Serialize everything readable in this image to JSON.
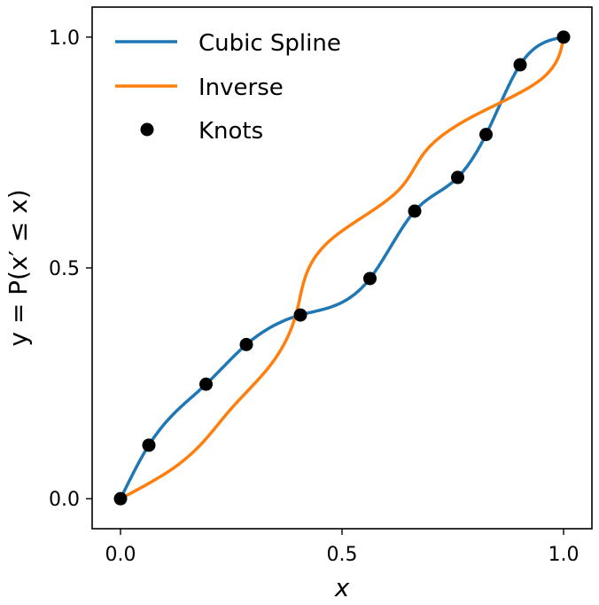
{
  "chart_data": {
    "type": "line",
    "title": "",
    "xlabel": "x",
    "ylabel": "y = P(x′ ≤ x)",
    "xlim": [
      -0.064,
      1.064
    ],
    "ylim": [
      -0.065,
      1.065
    ],
    "xticks": [
      "0.0",
      "0.5",
      "1.0"
    ],
    "yticks": [
      "0.0",
      "0.5",
      "1.0"
    ],
    "grid": false,
    "legend_placement": "top-left",
    "knots": {
      "x": [
        0.0,
        0.064,
        0.193,
        0.284,
        0.406,
        0.563,
        0.664,
        0.761,
        0.825,
        0.902,
        1.0
      ],
      "y": [
        0.0,
        0.116,
        0.248,
        0.334,
        0.398,
        0.477,
        0.623,
        0.696,
        0.789,
        0.94,
        1.0
      ]
    },
    "series": [
      {
        "name": "Cubic Spline",
        "color": "#1f77b4",
        "kind": "line"
      },
      {
        "name": "Inverse",
        "color": "#ff7f0e",
        "kind": "line"
      },
      {
        "name": "Knots",
        "color": "#000000",
        "kind": "scatter"
      }
    ]
  }
}
